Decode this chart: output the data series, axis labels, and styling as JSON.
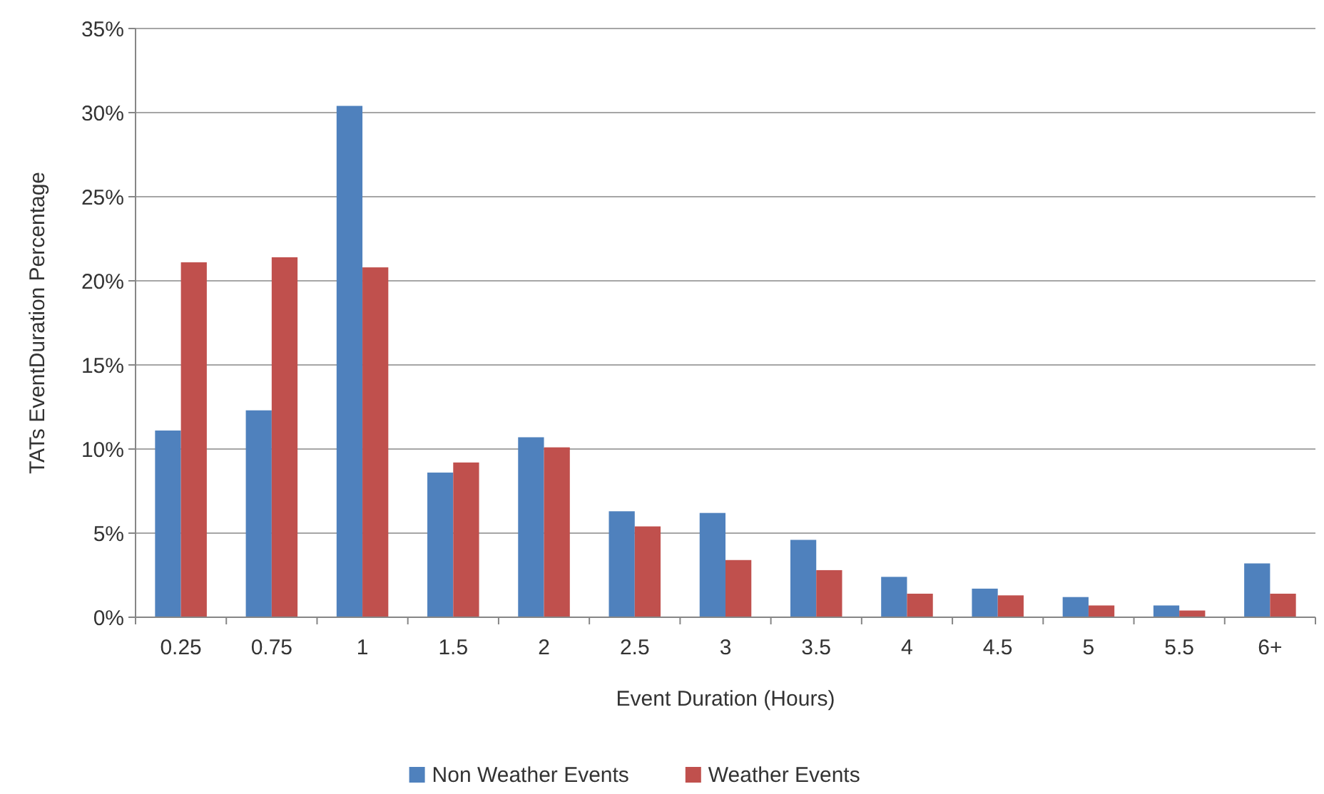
{
  "chart_data": {
    "type": "bar",
    "xlabel": "Event Duration (Hours)",
    "ylabel": "TATs EventDuration Percentage",
    "categories": [
      "0.25",
      "0.75",
      "1",
      "1.5",
      "2",
      "2.5",
      "3",
      "3.5",
      "4",
      "4.5",
      "5",
      "5.5",
      "6+"
    ],
    "series": [
      {
        "name": "Non Weather Events",
        "color": "#4f81bd",
        "values": [
          11.1,
          12.3,
          30.4,
          8.6,
          10.7,
          6.3,
          6.2,
          4.6,
          2.4,
          1.7,
          1.2,
          0.7,
          3.2
        ]
      },
      {
        "name": "Weather Events",
        "color": "#c0504d",
        "values": [
          21.1,
          21.4,
          20.8,
          9.2,
          10.1,
          5.4,
          3.4,
          2.8,
          1.4,
          1.3,
          0.7,
          0.4,
          1.4
        ]
      }
    ],
    "ylim": [
      0,
      35
    ],
    "yticks": [
      {
        "value": 0,
        "label": "0%"
      },
      {
        "value": 5,
        "label": "5%"
      },
      {
        "value": 10,
        "label": "10%"
      },
      {
        "value": 15,
        "label": "15%"
      },
      {
        "value": 20,
        "label": "20%"
      },
      {
        "value": 25,
        "label": "25%"
      },
      {
        "value": 30,
        "label": "30%"
      },
      {
        "value": 35,
        "label": "35%"
      }
    ],
    "grid": "y",
    "legend": "bottom"
  }
}
